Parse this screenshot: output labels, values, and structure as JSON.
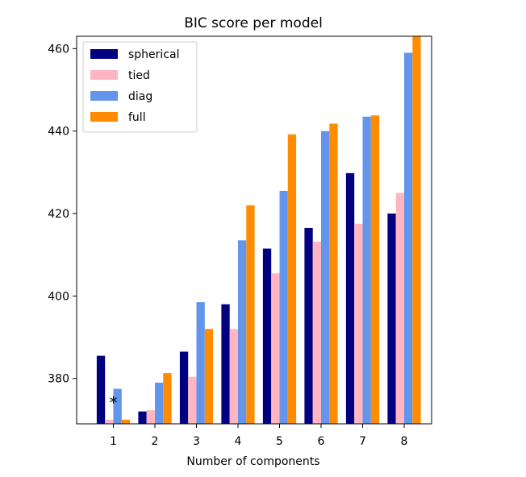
{
  "chart_data": {
    "type": "bar",
    "title": "BIC score per model",
    "xlabel": "Number of components",
    "ylabel": "",
    "categories": [
      "1",
      "2",
      "3",
      "4",
      "5",
      "6",
      "7",
      "8"
    ],
    "yticks": [
      380,
      400,
      420,
      440,
      460
    ],
    "ylim": [
      369,
      463
    ],
    "grid": false,
    "legend_position": "top-left",
    "series": [
      {
        "name": "spherical",
        "color": "#000080",
        "values": [
          385.5,
          372.0,
          386.5,
          398.0,
          411.5,
          416.5,
          429.8,
          420.0
        ]
      },
      {
        "name": "tied",
        "color": "#ffb6c1",
        "values": [
          370.0,
          372.3,
          380.4,
          392.0,
          405.5,
          413.2,
          417.5,
          425.0
        ]
      },
      {
        "name": "diag",
        "color": "#6495ed",
        "values": [
          377.5,
          379.0,
          398.5,
          413.5,
          425.5,
          440.0,
          443.5,
          459.0
        ]
      },
      {
        "name": "full",
        "color": "#ff8c00",
        "values": [
          370.0,
          381.3,
          392.0,
          422.0,
          439.2,
          441.8,
          443.8,
          465.0
        ]
      }
    ],
    "annotations": [
      {
        "text": "*",
        "category": "1",
        "y": 374.5
      }
    ]
  }
}
